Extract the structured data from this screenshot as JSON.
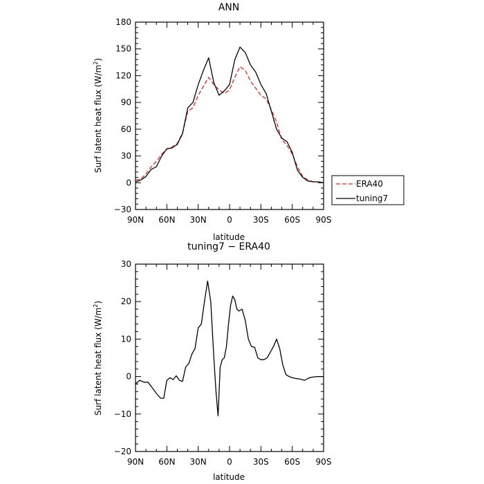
{
  "chart_data": [
    {
      "type": "line",
      "title": "ANN",
      "xlabel": "latitude",
      "ylabel": "Surf latent heat flux (W/m",
      "ylabel_sup": "2",
      "ylabel_end": ")",
      "xlim": [
        90,
        -90
      ],
      "ylim": [
        -30,
        180
      ],
      "xticks": [
        90,
        60,
        30,
        0,
        -30,
        -60,
        -90
      ],
      "xtick_labels": [
        "90N",
        "60N",
        "30N",
        "0",
        "30S",
        "60S",
        "90S"
      ],
      "yticks": [
        -30,
        0,
        30,
        60,
        90,
        120,
        150,
        180
      ],
      "ytick_labels": [
        "−30",
        "0",
        "30",
        "60",
        "90",
        "120",
        "150",
        "180"
      ],
      "legend": "outside-right",
      "x": [
        90,
        85,
        80,
        75,
        70,
        65,
        60,
        55,
        50,
        45,
        40,
        35,
        30,
        25,
        20,
        15,
        10,
        5,
        0,
        -5,
        -10,
        -15,
        -20,
        -25,
        -30,
        -35,
        -40,
        -45,
        -50,
        -55,
        -60,
        -65,
        -70,
        -75,
        -80,
        -85,
        -90
      ],
      "series": [
        {
          "name": "ERA40",
          "color": "#e8231c",
          "dash": "dashed",
          "values": [
            3,
            4,
            10,
            18,
            24,
            32,
            38,
            40,
            44,
            56,
            80,
            84,
            98,
            108,
            118,
            110,
            104,
            100,
            104,
            118,
            130,
            126,
            114,
            106,
            98,
            94,
            82,
            68,
            48,
            42,
            32,
            18,
            7,
            3,
            1,
            1,
            0
          ]
        },
        {
          "name": "tuning7",
          "color": "#000000",
          "dash": "solid",
          "values": [
            1,
            3,
            7,
            15,
            18,
            30,
            38,
            39,
            43,
            55,
            84,
            90,
            110,
            126,
            140,
            112,
            98,
            103,
            110,
            138,
            152,
            146,
            132,
            124,
            110,
            100,
            80,
            60,
            50,
            46,
            34,
            14,
            6,
            2,
            1,
            1,
            0
          ]
        }
      ]
    },
    {
      "type": "line",
      "title": "tuning7 − ERA40",
      "xlabel": "latitude",
      "ylabel": "Surf latent heat flux (W/m",
      "ylabel_sup": "2",
      "ylabel_end": ")",
      "xlim": [
        90,
        -90
      ],
      "ylim": [
        -20,
        30
      ],
      "xticks": [
        90,
        60,
        30,
        0,
        -30,
        -60,
        -90
      ],
      "xtick_labels": [
        "90N",
        "60N",
        "30N",
        "0",
        "30S",
        "60S",
        "90S"
      ],
      "yticks": [
        -20,
        -10,
        0,
        10,
        20,
        30
      ],
      "ytick_labels": [
        "−20",
        "−10",
        "0",
        "10",
        "20",
        "30"
      ],
      "x": [
        90,
        86,
        82,
        78,
        74,
        70,
        66,
        63,
        60,
        57,
        54,
        51,
        48,
        45,
        42,
        39,
        36,
        33,
        30,
        27,
        24,
        21,
        18,
        15,
        13,
        11,
        9,
        7,
        5,
        3,
        1,
        -1,
        -3,
        -5,
        -7,
        -9,
        -12,
        -15,
        -18,
        -21,
        -24,
        -27,
        -30,
        -33,
        -36,
        -39,
        -42,
        -45,
        -48,
        -51,
        -54,
        -57,
        -60,
        -63,
        -66,
        -69,
        -72,
        -75,
        -78,
        -81,
        -84,
        -87,
        -90
      ],
      "series": [
        {
          "name": "tuning7",
          "color": "#000000",
          "dash": "solid",
          "values": [
            -2,
            -1,
            -1.5,
            -1.5,
            -3,
            -4.5,
            -5.8,
            -5.8,
            -1,
            -0.3,
            -0.8,
            0.2,
            -1,
            -1.3,
            2.5,
            3.5,
            6,
            7.5,
            13,
            14,
            20,
            25.5,
            20,
            5,
            -4,
            -10.5,
            2.5,
            4.5,
            5,
            8,
            14,
            19,
            21.5,
            20.5,
            18,
            17.5,
            18,
            15,
            10,
            8,
            7.8,
            5,
            4.5,
            4.5,
            5,
            6.5,
            8,
            10,
            7.5,
            3,
            0.5,
            0,
            -0.3,
            -0.5,
            -0.6,
            -0.8,
            -1,
            -0.5,
            -0.2,
            -0.1,
            0,
            0,
            0
          ]
        }
      ]
    }
  ]
}
